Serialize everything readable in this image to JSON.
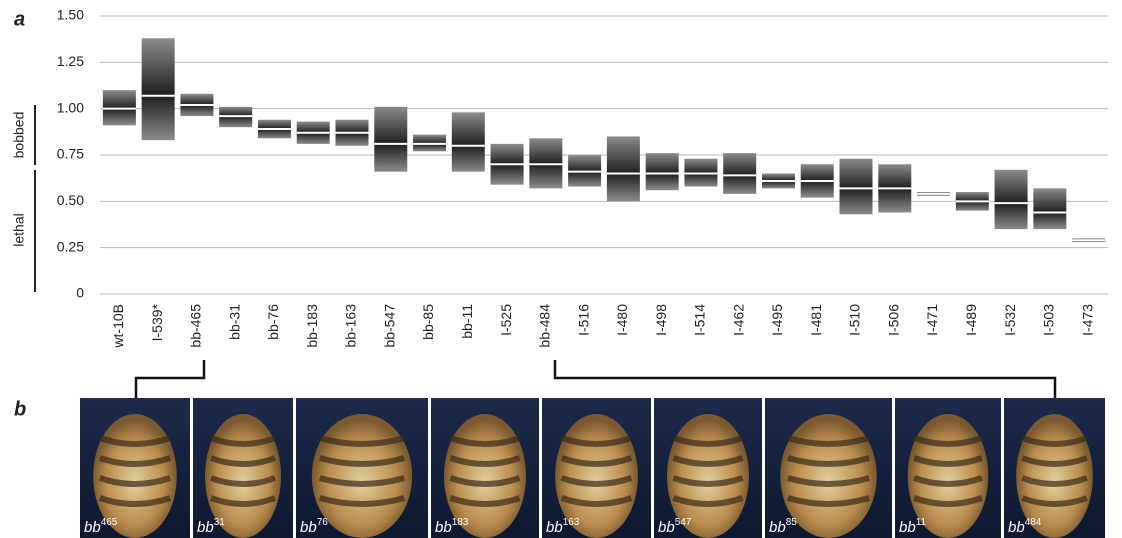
{
  "chart_data": {
    "type": "floating-bar",
    "panel_labels": [
      "a",
      "b"
    ],
    "bracket_labels": [
      "bobbed",
      "lethal"
    ],
    "categories": [
      "wt-10B",
      "I-539*",
      "bb-465",
      "bb-31",
      "bb-76",
      "bb-183",
      "bb-163",
      "bb-547",
      "bb-85",
      "bb-11",
      "I-525",
      "bb-484",
      "I-516",
      "I-480",
      "I-498",
      "I-514",
      "I-462",
      "I-495",
      "I-481",
      "I-510",
      "I-506",
      "I-471",
      "I-489",
      "I-532",
      "I-503",
      "I-473"
    ],
    "low": [
      0.91,
      0.83,
      0.96,
      0.9,
      0.84,
      0.81,
      0.8,
      0.66,
      0.77,
      0.66,
      0.59,
      0.57,
      0.58,
      0.5,
      0.56,
      0.58,
      0.54,
      0.57,
      0.52,
      0.43,
      0.44,
      0.53,
      0.45,
      0.35,
      0.35,
      0.28
    ],
    "high": [
      1.1,
      1.38,
      1.08,
      1.01,
      0.94,
      0.93,
      0.94,
      1.01,
      0.86,
      0.98,
      0.81,
      0.84,
      0.75,
      0.85,
      0.76,
      0.73,
      0.76,
      0.65,
      0.7,
      0.73,
      0.7,
      0.55,
      0.55,
      0.67,
      0.57,
      0.3
    ],
    "median": [
      1.0,
      1.07,
      1.02,
      0.96,
      0.89,
      0.87,
      0.87,
      0.81,
      0.81,
      0.8,
      0.7,
      0.7,
      0.66,
      0.65,
      0.65,
      0.65,
      0.64,
      0.61,
      0.61,
      0.57,
      0.57,
      0.54,
      0.5,
      0.49,
      0.44,
      0.29
    ],
    "ylim": [
      0,
      1.5
    ],
    "yticks": [
      0,
      0.25,
      {
        "value": 0.5,
        "label": "0.50"
      },
      0.75,
      {
        "value": 1,
        "label": "1.00"
      },
      1.25,
      {
        "value": 1.5,
        "label": "1.50"
      }
    ],
    "grid": true,
    "photos": [
      {
        "label": "bb",
        "sup": "465"
      },
      {
        "label": "bb",
        "sup": "31"
      },
      {
        "label": "bb",
        "sup": "76"
      },
      {
        "label": "bb",
        "sup": "183"
      },
      {
        "label": "bb",
        "sup": "163"
      },
      {
        "label": "bb",
        "sup": "547"
      },
      {
        "label": "bb",
        "sup": "85"
      },
      {
        "label": "bb",
        "sup": "11"
      },
      {
        "label": "bb",
        "sup": "484"
      }
    ]
  }
}
